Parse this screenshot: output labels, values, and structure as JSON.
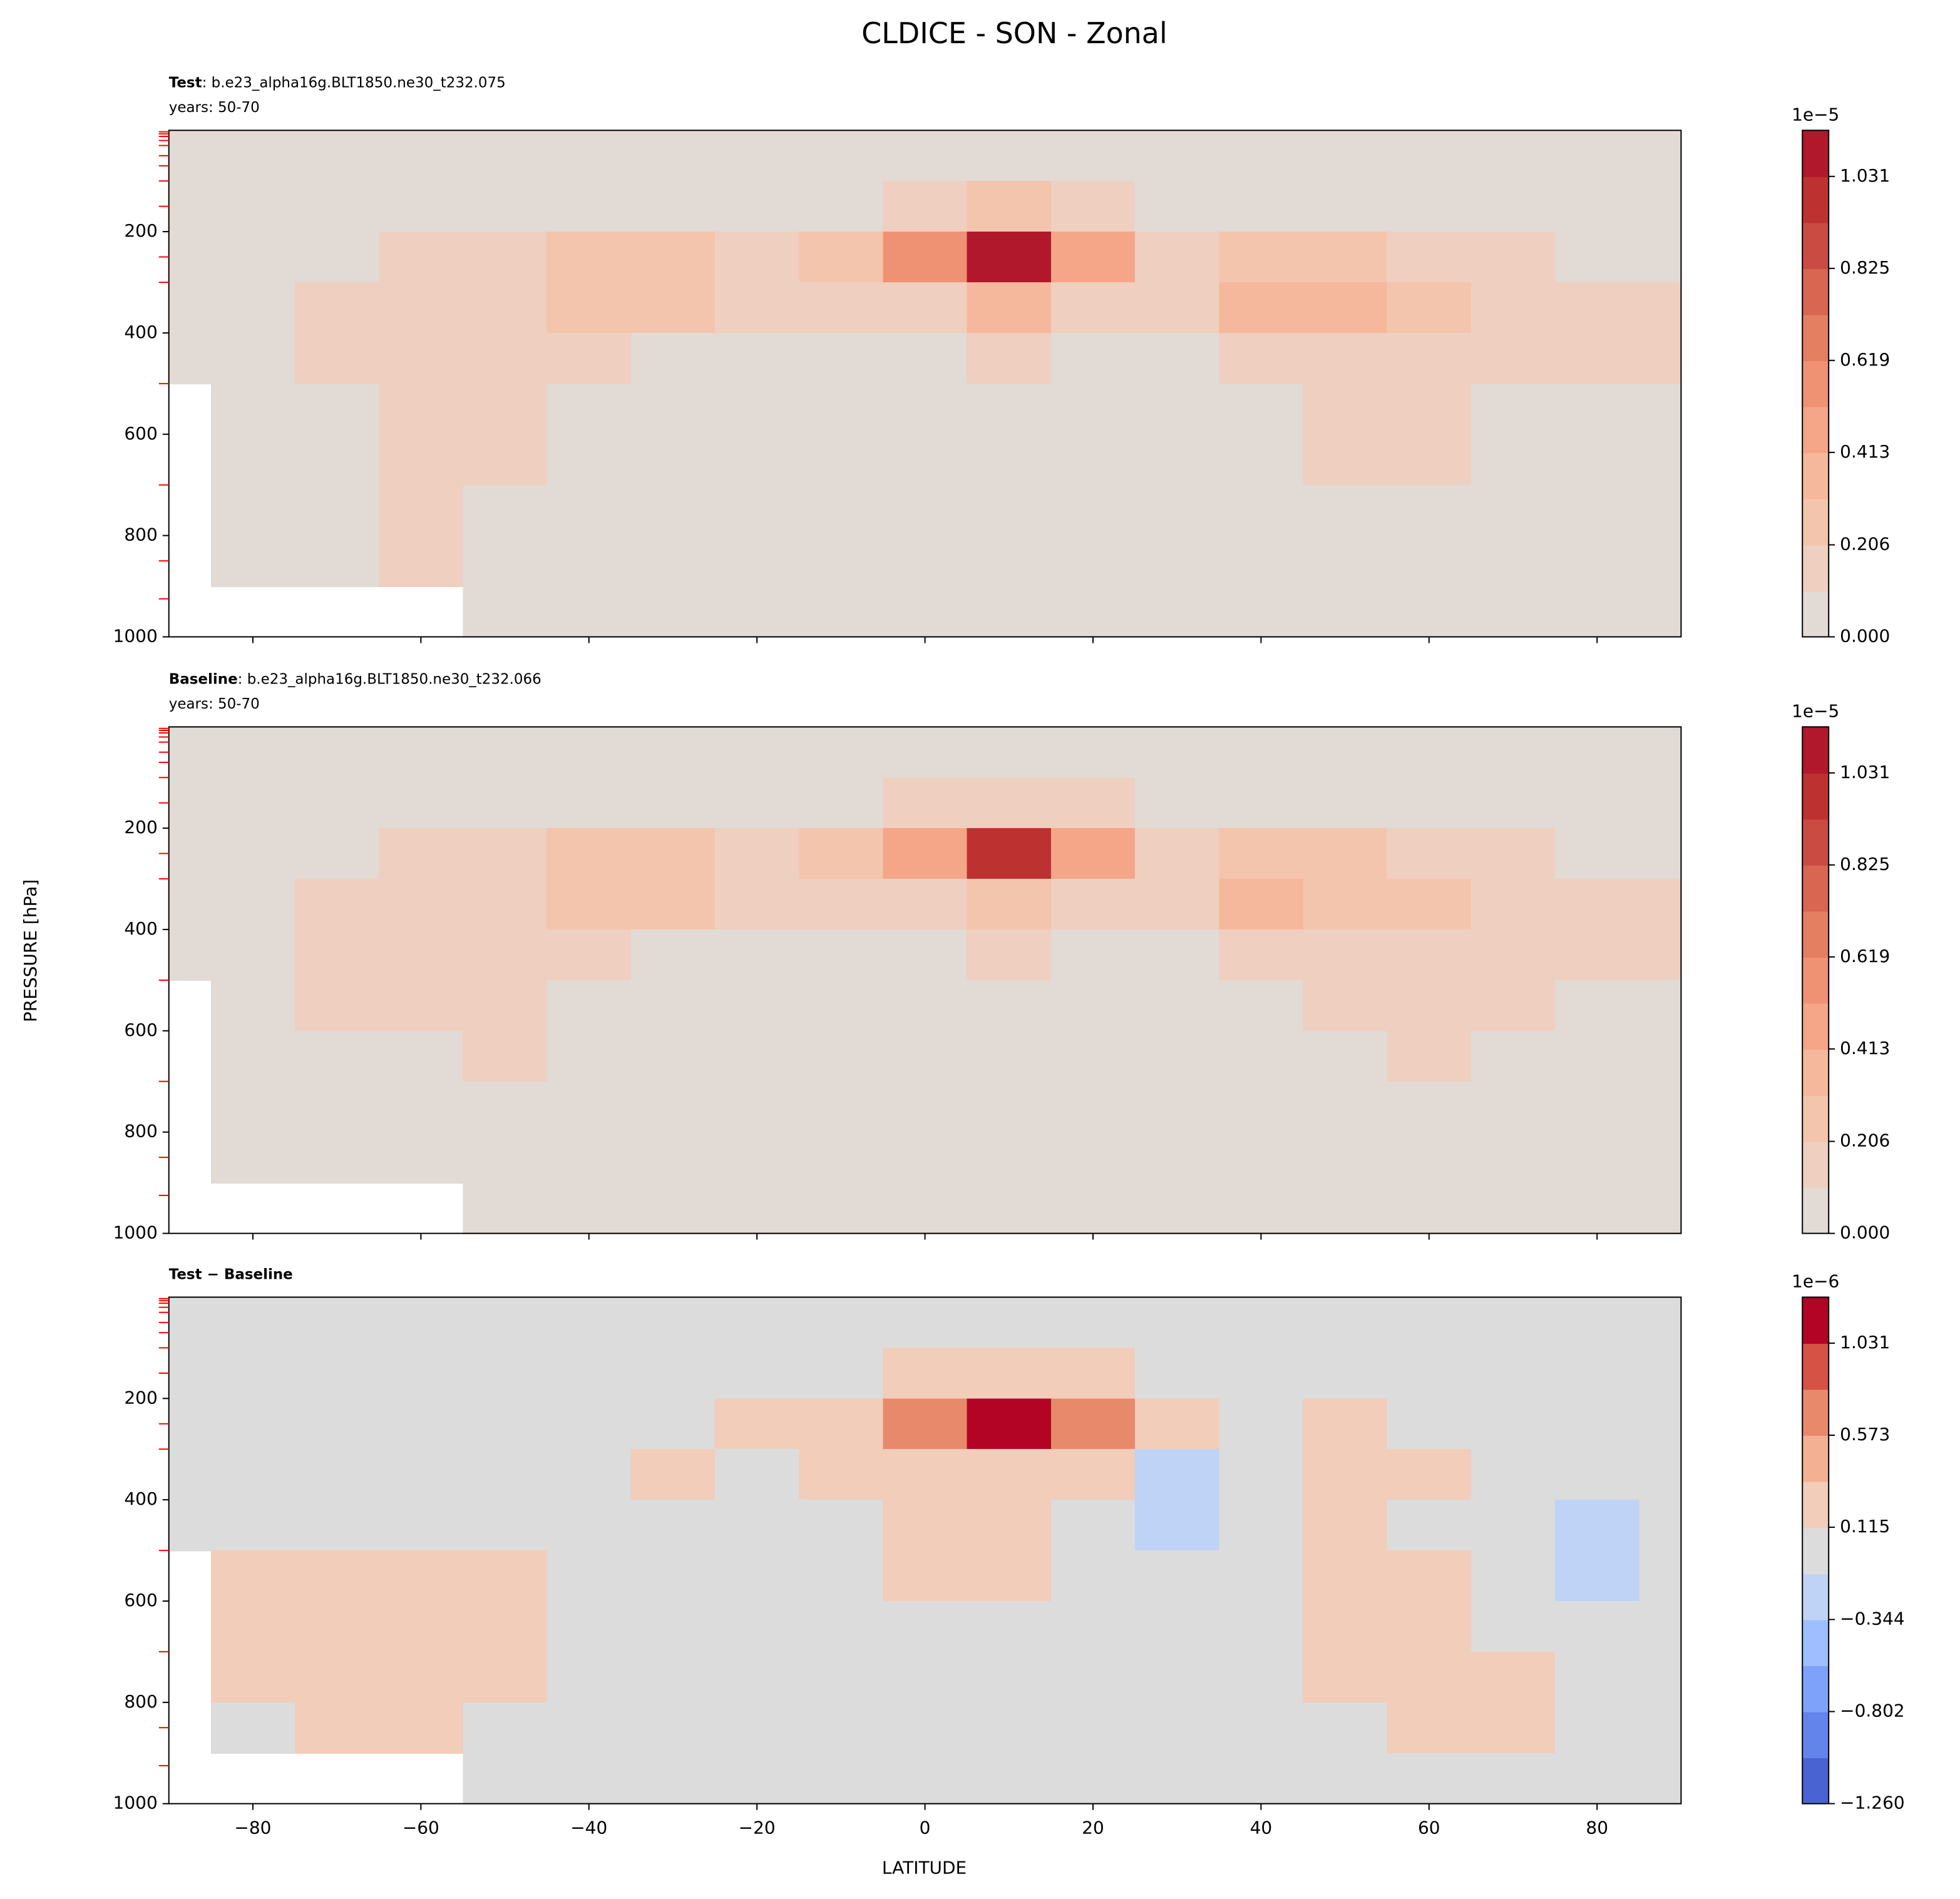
{
  "title": "CLDICE - SON - Zonal",
  "xlabel": "LATITUDE",
  "ylabel": "PRESSURE [hPa]",
  "chart_data": [
    {
      "type": "contour",
      "label": "Test",
      "case": ": b.e23_alpha16g.BLT1850.ne30_t232.075",
      "years": "years: 50-70",
      "x": [
        -90,
        -80,
        -70,
        -60,
        -50,
        -40,
        -30,
        -20,
        -10,
        0,
        10,
        20,
        30,
        40,
        50,
        60,
        70,
        80,
        90
      ],
      "y": [
        50,
        150,
        250,
        350,
        450,
        550,
        650,
        750,
        850,
        950
      ],
      "z": [
        [
          0.02,
          0.02,
          0.02,
          0.02,
          0.02,
          0.02,
          0.02,
          0.02,
          0.02,
          0.02,
          0.02,
          0.02,
          0.02,
          0.02,
          0.02,
          0.02,
          0.02,
          0.02,
          0.02
        ],
        [
          0.05,
          0.05,
          0.05,
          0.05,
          0.05,
          0.05,
          0.05,
          0.05,
          0.1,
          0.15,
          0.22,
          0.15,
          0.1,
          0.05,
          0.05,
          0.05,
          0.05,
          0.05,
          0.05
        ],
        [
          0.05,
          0.05,
          0.05,
          0.12,
          0.15,
          0.22,
          0.25,
          0.15,
          0.22,
          0.55,
          1.05,
          0.5,
          0.18,
          0.25,
          0.28,
          0.18,
          0.12,
          0.05,
          0.05
        ],
        [
          0.05,
          0.05,
          0.12,
          0.15,
          0.18,
          0.3,
          0.28,
          0.15,
          0.12,
          0.18,
          0.35,
          0.15,
          0.15,
          0.35,
          0.38,
          0.3,
          0.15,
          0.12,
          0.14
        ],
        [
          0.05,
          0.05,
          0.12,
          0.15,
          0.12,
          0.12,
          0.05,
          0.05,
          0.05,
          0.05,
          0.15,
          0.05,
          0.05,
          0.12,
          0.15,
          0.15,
          0.12,
          0.12,
          0.12
        ],
        [
          null,
          0.05,
          0.1,
          0.12,
          0.12,
          0.05,
          0.05,
          0.05,
          0.05,
          0.05,
          0.05,
          0.05,
          0.05,
          0.05,
          0.12,
          0.12,
          0.05,
          0.05,
          0.05
        ],
        [
          null,
          0.05,
          0.05,
          0.12,
          0.12,
          0.05,
          0.05,
          0.05,
          0.05,
          0.05,
          0.05,
          0.05,
          0.05,
          0.05,
          0.12,
          0.12,
          0.05,
          0.05,
          0.05
        ],
        [
          null,
          0.05,
          0.05,
          0.12,
          0.05,
          0.05,
          0.05,
          0.05,
          0.05,
          0.05,
          0.05,
          0.05,
          0.05,
          0.05,
          0.05,
          0.05,
          0.05,
          0.05,
          0.05
        ],
        [
          null,
          0.05,
          0.05,
          0.12,
          0.05,
          0.05,
          0.05,
          0.05,
          0.05,
          0.05,
          0.05,
          0.05,
          0.05,
          0.05,
          0.05,
          0.05,
          0.05,
          0.05,
          0.05
        ],
        [
          null,
          null,
          null,
          null,
          0.05,
          0.05,
          0.05,
          0.05,
          0.05,
          0.05,
          0.05,
          0.05,
          0.05,
          0.05,
          0.05,
          0.05,
          0.05,
          0.05,
          0.05
        ]
      ],
      "xlim": [
        -90,
        90
      ],
      "ylim": [
        1000,
        0
      ],
      "xticks": [
        -80,
        -60,
        -40,
        -20,
        0,
        20,
        40,
        60,
        80
      ],
      "xtick_labels": false,
      "yticks": [
        200,
        400,
        600,
        800,
        1000
      ],
      "level_ticks": [
        3,
        7,
        12,
        20,
        30,
        50,
        70,
        100,
        150,
        250,
        300,
        500,
        700,
        850,
        925
      ],
      "level_tick_color": "#ff0000",
      "levels": [
        0,
        0.1031,
        0.2062,
        0.3093,
        0.4124,
        0.5155,
        0.6186,
        0.7217,
        0.8248,
        0.9279,
        1.031,
        1.1341
      ],
      "colors": [
        "#e2dad5",
        "#efcfbf",
        "#f4c5ad",
        "#f6b89c",
        "#f5a688",
        "#ef9273",
        "#e57f62",
        "#d86651",
        "#ca4b41",
        "#bd3230",
        "#b2182b"
      ],
      "colorbar_ticks": [
        {
          "value": 0,
          "label": "0.000"
        },
        0.206,
        0.413,
        0.619,
        0.825,
        1.031
      ],
      "colorbar_offset": "1e−5"
    },
    {
      "type": "contour",
      "label": "Baseline",
      "case": ": b.e23_alpha16g.BLT1850.ne30_t232.066",
      "years": "years: 50-70",
      "x": [
        -90,
        -80,
        -70,
        -60,
        -50,
        -40,
        -30,
        -20,
        -10,
        0,
        10,
        20,
        30,
        40,
        50,
        60,
        70,
        80,
        90
      ],
      "y": [
        50,
        150,
        250,
        350,
        450,
        550,
        650,
        750,
        850,
        950
      ],
      "z": [
        [
          0.02,
          0.02,
          0.02,
          0.02,
          0.02,
          0.02,
          0.02,
          0.02,
          0.02,
          0.02,
          0.02,
          0.02,
          0.02,
          0.02,
          0.02,
          0.02,
          0.02,
          0.02,
          0.02
        ],
        [
          0.05,
          0.05,
          0.05,
          0.05,
          0.05,
          0.05,
          0.05,
          0.05,
          0.1,
          0.15,
          0.2,
          0.15,
          0.1,
          0.05,
          0.05,
          0.05,
          0.05,
          0.05,
          0.05
        ],
        [
          0.05,
          0.05,
          0.05,
          0.12,
          0.15,
          0.22,
          0.25,
          0.15,
          0.25,
          0.5,
          0.95,
          0.45,
          0.18,
          0.22,
          0.28,
          0.18,
          0.12,
          0.08,
          0.05
        ],
        [
          0.05,
          0.05,
          0.12,
          0.15,
          0.18,
          0.3,
          0.25,
          0.15,
          0.12,
          0.18,
          0.3,
          0.15,
          0.15,
          0.35,
          0.3,
          0.3,
          0.15,
          0.12,
          0.14
        ],
        [
          0.05,
          0.05,
          0.12,
          0.15,
          0.12,
          0.12,
          0.05,
          0.05,
          0.05,
          0.05,
          0.12,
          0.05,
          0.05,
          0.12,
          0.15,
          0.15,
          0.12,
          0.12,
          0.12
        ],
        [
          null,
          0.05,
          0.12,
          0.12,
          0.12,
          0.05,
          0.05,
          0.05,
          0.05,
          0.05,
          0.05,
          0.05,
          0.05,
          0.05,
          0.12,
          0.12,
          0.12,
          0.05,
          0.05
        ],
        [
          null,
          0.05,
          0.05,
          0.05,
          0.12,
          0.05,
          0.05,
          0.05,
          0.05,
          0.05,
          0.05,
          0.05,
          0.05,
          0.05,
          0.05,
          0.12,
          0.05,
          0.05,
          0.05
        ],
        [
          null,
          0.05,
          0.05,
          0.05,
          0.05,
          0.05,
          0.05,
          0.05,
          0.05,
          0.05,
          0.05,
          0.05,
          0.05,
          0.05,
          0.05,
          0.05,
          0.05,
          0.05,
          0.05
        ],
        [
          null,
          0.05,
          0.05,
          0.05,
          0.05,
          0.05,
          0.05,
          0.05,
          0.05,
          0.05,
          0.05,
          0.05,
          0.05,
          0.05,
          0.05,
          0.05,
          0.05,
          0.05,
          0.05
        ],
        [
          null,
          null,
          null,
          null,
          0.05,
          0.05,
          0.05,
          0.05,
          0.05,
          0.05,
          0.05,
          0.05,
          0.05,
          0.05,
          0.05,
          0.05,
          0.05,
          0.05,
          0.05
        ]
      ],
      "xlim": [
        -90,
        90
      ],
      "ylim": [
        1000,
        0
      ],
      "xticks": [
        -80,
        -60,
        -40,
        -20,
        0,
        20,
        40,
        60,
        80
      ],
      "xtick_labels": false,
      "yticks": [
        200,
        400,
        600,
        800,
        1000
      ],
      "level_ticks": [
        3,
        7,
        12,
        20,
        30,
        50,
        70,
        100,
        150,
        250,
        300,
        500,
        700,
        850,
        925
      ],
      "level_tick_color": "#ff0000",
      "levels": [
        0,
        0.1031,
        0.2062,
        0.3093,
        0.4124,
        0.5155,
        0.6186,
        0.7217,
        0.8248,
        0.9279,
        1.031,
        1.1341
      ],
      "colors": [
        "#e2dad5",
        "#efcfbf",
        "#f4c5ad",
        "#f6b89c",
        "#f5a688",
        "#ef9273",
        "#e57f62",
        "#d86651",
        "#ca4b41",
        "#bd3230",
        "#b2182b"
      ],
      "colorbar_ticks": [
        {
          "value": 0,
          "label": "0.000"
        },
        0.206,
        0.413,
        0.619,
        0.825,
        1.031
      ],
      "colorbar_offset": "1e−5"
    },
    {
      "type": "contour",
      "label": "Test − Baseline",
      "x": [
        -90,
        -80,
        -70,
        -60,
        -50,
        -40,
        -30,
        -20,
        -10,
        0,
        10,
        20,
        30,
        40,
        50,
        60,
        70,
        80,
        90
      ],
      "y": [
        50,
        150,
        250,
        350,
        450,
        550,
        650,
        750,
        850,
        950
      ],
      "z": [
        [
          0,
          0,
          0,
          0,
          0,
          0,
          0,
          0,
          0,
          0,
          0,
          0,
          0,
          0,
          0,
          0,
          0,
          0,
          0
        ],
        [
          0,
          0,
          0,
          0,
          0,
          0,
          0,
          0,
          0,
          0.2,
          0.2,
          0.2,
          0,
          0,
          0,
          0,
          0,
          0,
          0
        ],
        [
          0,
          0,
          0,
          0,
          0,
          0,
          0,
          0.2,
          0.2,
          0.6,
          1.1,
          0.7,
          0.2,
          0,
          0.2,
          0,
          0,
          0,
          0
        ],
        [
          0,
          0,
          0,
          0,
          0,
          0,
          0.2,
          0,
          0.2,
          0.2,
          0.2,
          0.2,
          -0.2,
          0,
          0.2,
          0.2,
          0,
          0,
          0
        ],
        [
          0,
          0,
          0,
          0,
          0,
          0,
          0,
          0,
          0,
          0.2,
          0.2,
          0,
          -0.2,
          0,
          0.2,
          0,
          0,
          -0.2,
          0
        ],
        [
          null,
          0.2,
          0.2,
          0.2,
          0.2,
          0,
          0,
          0,
          0,
          0.2,
          0.2,
          0,
          0,
          0,
          0.2,
          0.2,
          0,
          -0.2,
          0
        ],
        [
          null,
          0.2,
          0.2,
          0.2,
          0.2,
          0,
          0,
          0,
          0,
          0,
          0,
          0,
          0,
          0,
          0.2,
          0.2,
          0,
          0,
          0
        ],
        [
          null,
          0.2,
          0.2,
          0.2,
          0.2,
          0,
          0,
          0,
          0,
          0,
          0,
          0,
          0,
          0,
          0.2,
          0.2,
          0.2,
          0,
          0
        ],
        [
          null,
          0,
          0.2,
          0.2,
          0,
          0,
          0,
          0,
          0,
          0,
          0,
          0,
          0,
          0,
          0,
          0.2,
          0.2,
          0,
          0
        ],
        [
          null,
          null,
          null,
          null,
          0,
          0,
          0,
          0,
          0,
          0,
          0,
          0,
          0,
          0,
          0,
          0,
          0,
          0,
          0
        ]
      ],
      "xlim": [
        -90,
        90
      ],
      "ylim": [
        1000,
        0
      ],
      "xticks": [
        {
          "value": -80,
          "label": "−80"
        },
        {
          "value": -60,
          "label": "−60"
        },
        {
          "value": -40,
          "label": "−40"
        },
        {
          "value": -20,
          "label": "−20"
        },
        0,
        20,
        40,
        60,
        80
      ],
      "xtick_labels": true,
      "yticks": [
        200,
        400,
        600,
        800,
        1000
      ],
      "level_ticks": [
        3,
        7,
        12,
        20,
        30,
        50,
        70,
        100,
        150,
        250,
        300,
        500,
        700,
        850,
        925
      ],
      "level_tick_color": "#ff0000",
      "levels": [
        -1.2603,
        -1.0312,
        -0.8021,
        -0.573,
        -0.3439,
        -0.1148,
        0.1143,
        0.3434,
        0.5725,
        0.8016,
        1.0307,
        1.2598
      ],
      "colors": [
        "#4a63d3",
        "#6384eb",
        "#7ea1fa",
        "#9ebeff",
        "#bfd3f6",
        "#dcdcdc",
        "#f1cdba",
        "#f3b092",
        "#e8896c",
        "#d65244",
        "#b40426"
      ],
      "colorbar_ticks": [
        {
          "value": -1.26,
          "label": "−1.260"
        },
        {
          "value": -0.802,
          "label": "−0.802"
        },
        {
          "value": -0.344,
          "label": "−0.344"
        },
        0.115,
        0.573,
        1.031
      ],
      "colorbar_offset": "1e−6"
    }
  ]
}
